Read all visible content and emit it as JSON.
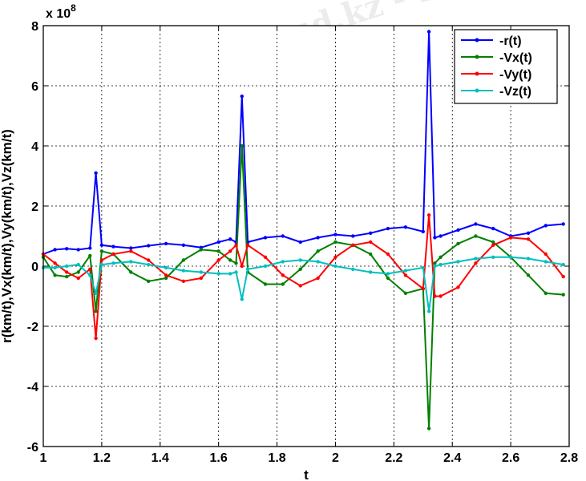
{
  "chart_data": {
    "type": "line",
    "title": "",
    "xlabel": "t",
    "ylabel": "r(km/t),Vx(km/t),Vy(km/t),Vz(km/t)",
    "y_exponent_base": "x 10",
    "y_exponent_power": "8",
    "xlim": [
      1,
      2.8
    ],
    "ylim": [
      -6,
      8
    ],
    "x_ticks": [
      "1",
      "1.2",
      "1.4",
      "1.6",
      "1.8",
      "2",
      "2.2",
      "2.4",
      "2.6",
      "2.8"
    ],
    "y_ticks": [
      "-6",
      "-4",
      "-2",
      "0",
      "2",
      "4",
      "6",
      "8"
    ],
    "grid": true,
    "legend_position": "top-right",
    "series": [
      {
        "name": "-r(t)",
        "color": "#0000ff",
        "x": [
          1.0,
          1.04,
          1.08,
          1.12,
          1.16,
          1.18,
          1.2,
          1.24,
          1.3,
          1.36,
          1.42,
          1.48,
          1.54,
          1.6,
          1.64,
          1.66,
          1.68,
          1.7,
          1.76,
          1.82,
          1.88,
          1.94,
          2.0,
          2.06,
          2.12,
          2.18,
          2.24,
          2.3,
          2.32,
          2.34,
          2.36,
          2.42,
          2.48,
          2.54,
          2.6,
          2.66,
          2.72,
          2.78
        ],
        "y": [
          0.4,
          0.55,
          0.58,
          0.55,
          0.6,
          3.1,
          0.7,
          0.65,
          0.6,
          0.68,
          0.75,
          0.7,
          0.62,
          0.8,
          0.9,
          0.8,
          5.65,
          0.8,
          0.95,
          1.0,
          0.8,
          0.95,
          1.05,
          1.0,
          1.1,
          1.25,
          1.3,
          1.15,
          7.8,
          0.95,
          1.0,
          1.2,
          1.4,
          1.25,
          1.0,
          1.1,
          1.35,
          1.4
        ]
      },
      {
        "name": "-Vx(t)",
        "color": "#008000",
        "x": [
          1.0,
          1.04,
          1.08,
          1.12,
          1.16,
          1.18,
          1.2,
          1.24,
          1.3,
          1.36,
          1.42,
          1.48,
          1.54,
          1.6,
          1.64,
          1.66,
          1.68,
          1.7,
          1.76,
          1.82,
          1.88,
          1.94,
          2.0,
          2.06,
          2.12,
          2.18,
          2.24,
          2.3,
          2.32,
          2.34,
          2.36,
          2.42,
          2.48,
          2.54,
          2.6,
          2.66,
          2.72,
          2.78
        ],
        "y": [
          0.3,
          -0.3,
          -0.35,
          -0.2,
          0.35,
          -1.5,
          0.5,
          0.4,
          -0.2,
          -0.5,
          -0.4,
          0.2,
          0.55,
          0.5,
          0.2,
          0.1,
          4.0,
          -0.2,
          -0.6,
          -0.6,
          -0.1,
          0.5,
          0.8,
          0.7,
          0.4,
          -0.4,
          -0.9,
          -0.75,
          -5.4,
          0.1,
          0.3,
          0.75,
          1.0,
          0.8,
          0.3,
          -0.3,
          -0.9,
          -0.95
        ]
      },
      {
        "name": "-Vy(t)",
        "color": "#ff0000",
        "x": [
          1.0,
          1.04,
          1.08,
          1.12,
          1.16,
          1.18,
          1.2,
          1.24,
          1.3,
          1.36,
          1.42,
          1.48,
          1.54,
          1.6,
          1.64,
          1.66,
          1.68,
          1.7,
          1.76,
          1.82,
          1.88,
          1.94,
          2.0,
          2.06,
          2.12,
          2.18,
          2.24,
          2.3,
          2.32,
          2.34,
          2.36,
          2.42,
          2.48,
          2.54,
          2.6,
          2.66,
          2.72,
          2.78
        ],
        "y": [
          0.4,
          0.1,
          -0.2,
          -0.4,
          -0.1,
          -2.4,
          0.2,
          0.4,
          0.5,
          0.2,
          -0.3,
          -0.5,
          -0.4,
          0.2,
          0.5,
          0.7,
          0.0,
          0.7,
          0.3,
          -0.3,
          -0.65,
          -0.4,
          0.3,
          0.7,
          0.8,
          0.4,
          -0.3,
          -0.75,
          1.7,
          -1.0,
          -1.0,
          -0.7,
          0.1,
          0.7,
          0.95,
          0.9,
          0.4,
          -0.35
        ]
      },
      {
        "name": "-Vz(t)",
        "color": "#00bfbf",
        "x": [
          1.0,
          1.04,
          1.08,
          1.12,
          1.16,
          1.18,
          1.2,
          1.24,
          1.3,
          1.36,
          1.42,
          1.48,
          1.54,
          1.6,
          1.64,
          1.66,
          1.68,
          1.7,
          1.76,
          1.82,
          1.88,
          1.94,
          2.0,
          2.06,
          2.12,
          2.18,
          2.24,
          2.3,
          2.32,
          2.34,
          2.36,
          2.42,
          2.48,
          2.54,
          2.6,
          2.66,
          2.72,
          2.78
        ],
        "y": [
          -0.05,
          -0.05,
          0.0,
          0.05,
          -0.3,
          -0.9,
          0.05,
          0.1,
          0.15,
          0.05,
          -0.05,
          -0.15,
          -0.2,
          -0.25,
          -0.25,
          -0.2,
          -1.1,
          -0.1,
          0.0,
          0.15,
          0.2,
          0.15,
          0.0,
          -0.1,
          -0.2,
          -0.25,
          -0.15,
          -0.05,
          -1.5,
          0.0,
          0.05,
          0.15,
          0.25,
          0.3,
          0.3,
          0.25,
          0.15,
          0.05
        ]
      }
    ]
  },
  "watermark": "Stud.kz - Stud.kz"
}
